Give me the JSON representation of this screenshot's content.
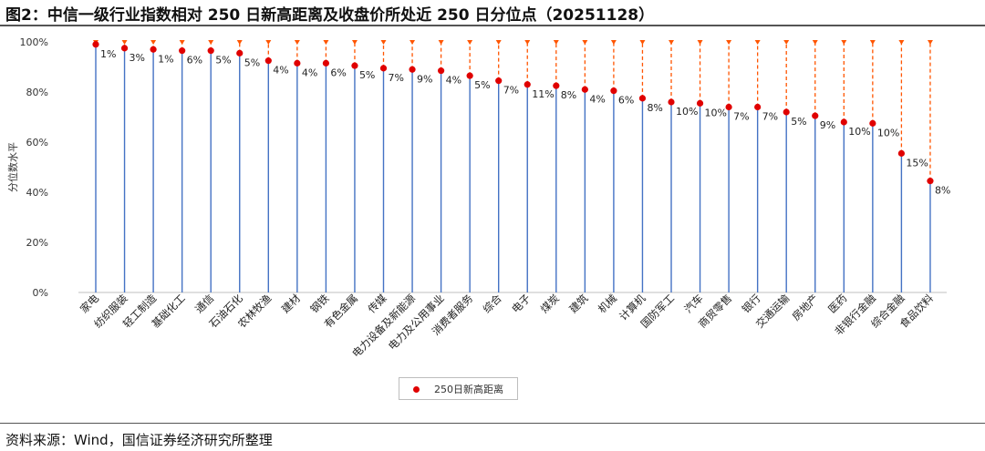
{
  "header": {
    "title": "图2：中信一级行业指数相对 250 日新高距离及收盘价所处近 250 日分位点（20251128）"
  },
  "footer": {
    "source": "资料来源：Wind，国信证券经济研究所整理"
  },
  "chart_data": {
    "type": "scatter",
    "title": "图2：中信一级行业指数相对 250 日新高距离及收盘价所处近 250 日分位点（20251128）",
    "xlabel": "",
    "ylabel": "分位数水平",
    "ylim": [
      0,
      100
    ],
    "yticks": [
      "0%",
      "20%",
      "40%",
      "60%",
      "80%",
      "100%"
    ],
    "grid": false,
    "legend": "bottom-center",
    "categories": [
      "家电",
      "纺织服装",
      "轻工制造",
      "基础化工",
      "通信",
      "石油石化",
      "农林牧渔",
      "建材",
      "钢铁",
      "有色金属",
      "传媒",
      "电力设备及新能源",
      "电力及公用事业",
      "消费者服务",
      "综合",
      "电子",
      "煤炭",
      "建筑",
      "机械",
      "计算机",
      "国防军工",
      "汽车",
      "商贸零售",
      "银行",
      "交通运输",
      "房地产",
      "医药",
      "非银行金融",
      "综合金融",
      "食品饮料"
    ],
    "series": [
      {
        "name": "250日新高距离",
        "color": "#e00000",
        "values": [
          99,
          97.5,
          97,
          96.5,
          96.5,
          95.5,
          92.5,
          91.5,
          91.5,
          90.5,
          89.5,
          89,
          88.5,
          86.5,
          84.5,
          83,
          82.5,
          81,
          80.5,
          77.5,
          76,
          75.5,
          74,
          74,
          72,
          70.5,
          68,
          67.5,
          55.5,
          44.5
        ],
        "labels": [
          "1%",
          "3%",
          "1%",
          "6%",
          "5%",
          "5%",
          "4%",
          "4%",
          "6%",
          "5%",
          "7%",
          "9%",
          "4%",
          "5%",
          "7%",
          "11%",
          "8%",
          "4%",
          "6%",
          "8%",
          "10%",
          "10%",
          "7%",
          "7%",
          "5%",
          "9%",
          "10%",
          "10%",
          "15%",
          "8%"
        ]
      }
    ],
    "colors": {
      "stem": "#4472c4",
      "gap": "#ff5500",
      "marker": "#e00000",
      "axis": "#bfbfbf"
    }
  }
}
